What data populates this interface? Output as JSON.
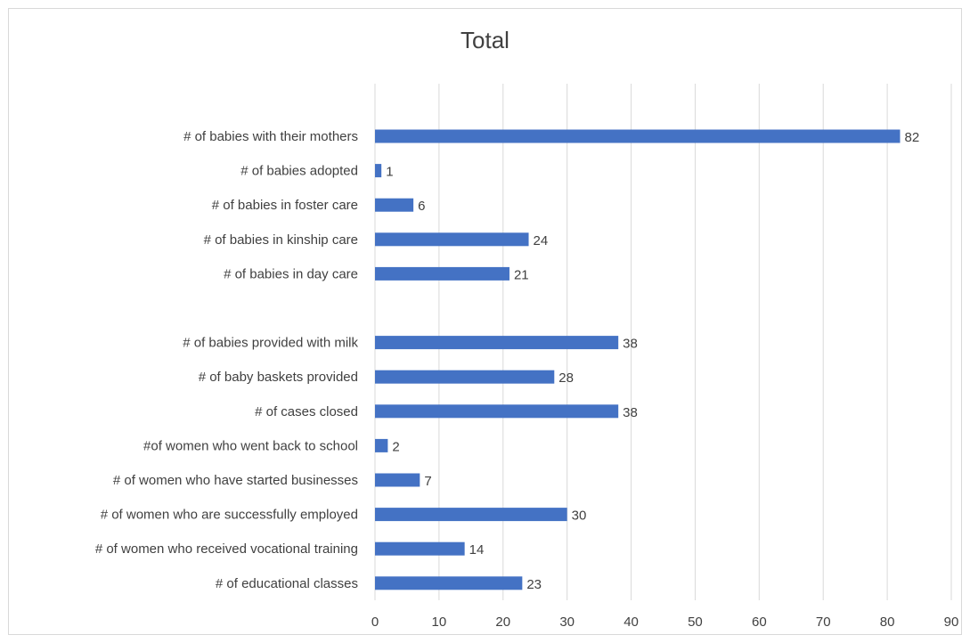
{
  "chart_data": {
    "type": "bar",
    "orientation": "horizontal",
    "title": "Total",
    "xlabel": "",
    "ylabel": "",
    "xlim": [
      0,
      90
    ],
    "x_ticks": [
      0,
      10,
      20,
      30,
      40,
      50,
      60,
      70,
      80,
      90
    ],
    "grid": "vertical",
    "bar_color": "#4472c4",
    "categories": [
      "# of babies with their mothers",
      "# of babies adopted",
      "# of babies in foster care",
      "# of babies in kinship care",
      "# of babies in day care",
      "",
      "# of babies provided with milk",
      "# of baby baskets provided",
      "# of cases closed",
      "#of women who went back to school",
      "# of women who have started businesses",
      "# of women who are successfully employed",
      "# of women who received vocational training",
      "# of educational classes"
    ],
    "values": [
      82,
      1,
      6,
      24,
      21,
      null,
      38,
      28,
      38,
      2,
      7,
      30,
      14,
      23
    ]
  }
}
